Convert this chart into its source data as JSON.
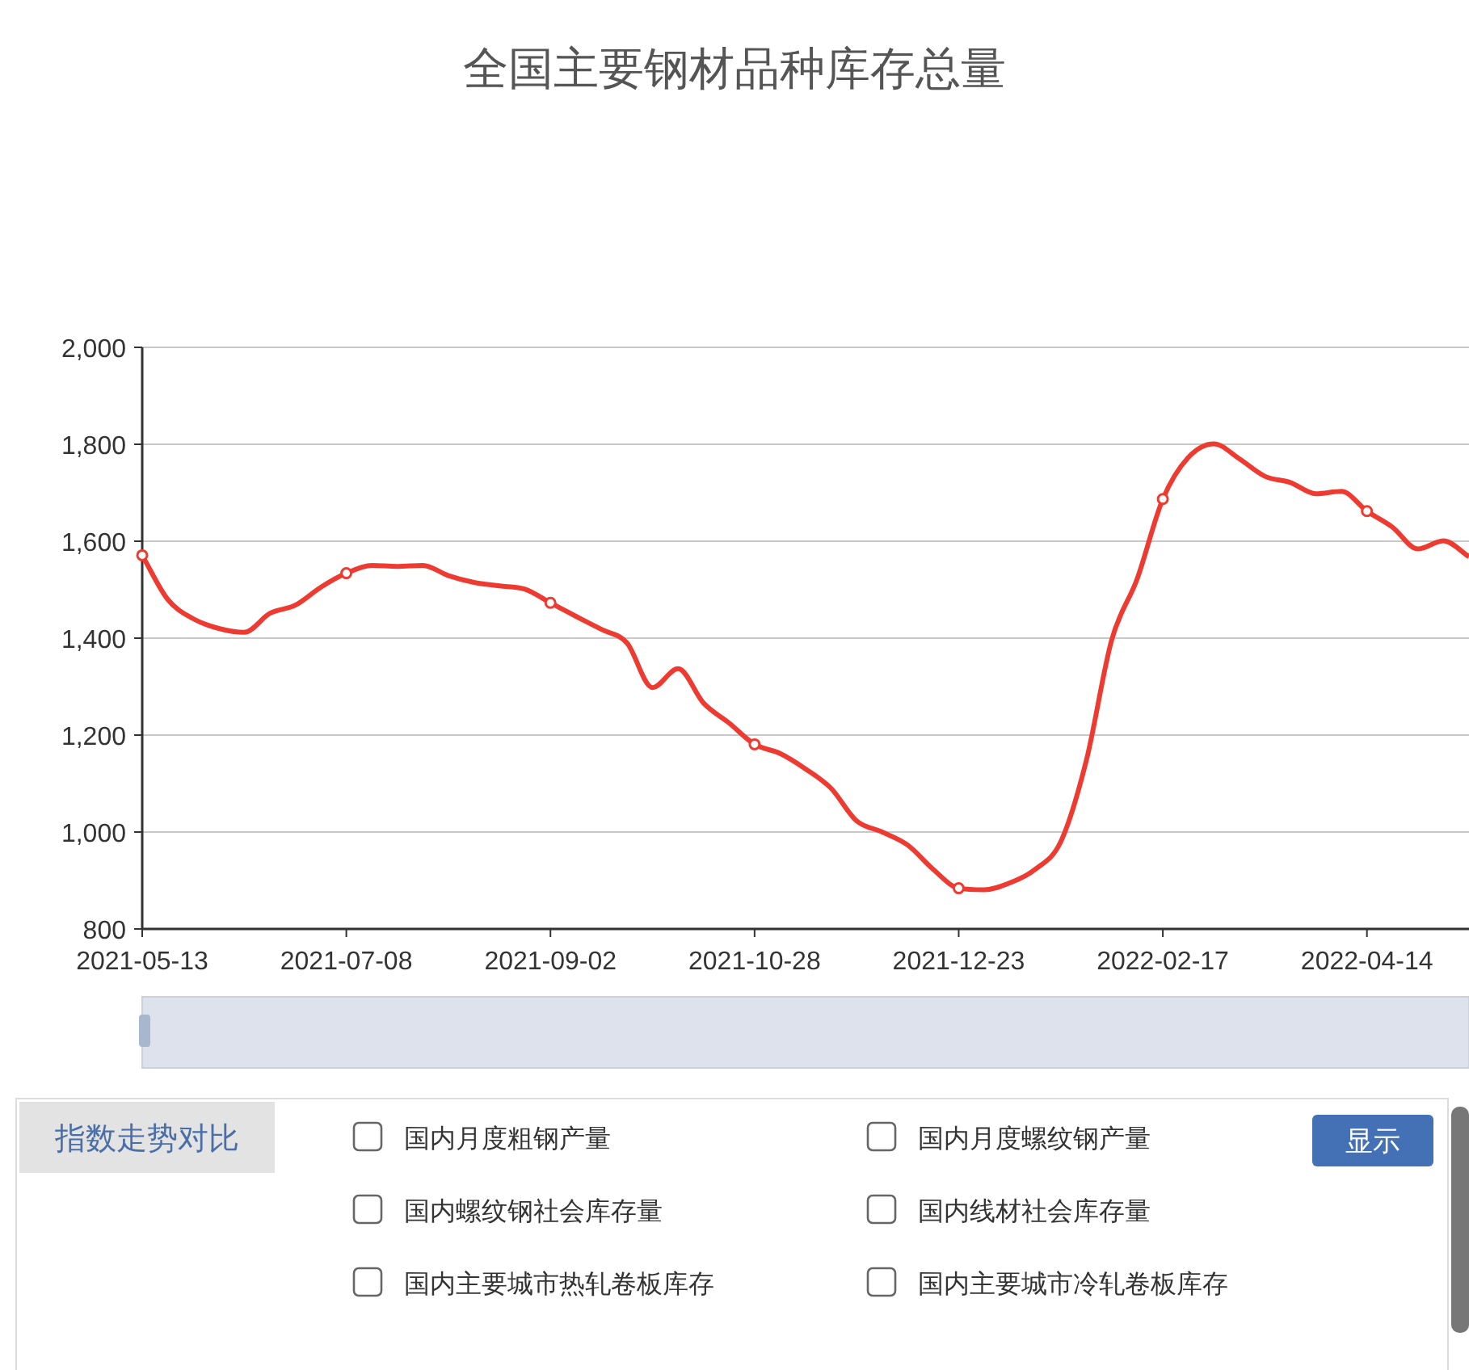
{
  "chart_data": [
    {
      "type": "line",
      "title": "全国主要钢材品种库存总量",
      "x": [
        "2021-05-13",
        "2021-05-20",
        "2021-05-27",
        "2021-06-03",
        "2021-06-10",
        "2021-06-17",
        "2021-06-24",
        "2021-07-01",
        "2021-07-08",
        "2021-07-15",
        "2021-07-22",
        "2021-07-29",
        "2021-08-05",
        "2021-08-12",
        "2021-08-19",
        "2021-08-26",
        "2021-09-02",
        "2021-09-09",
        "2021-09-16",
        "2021-09-23",
        "2021-09-30",
        "2021-10-07",
        "2021-10-14",
        "2021-10-21",
        "2021-10-28",
        "2021-11-04",
        "2021-11-11",
        "2021-11-18",
        "2021-11-25",
        "2021-12-02",
        "2021-12-09",
        "2021-12-16",
        "2021-12-23",
        "2021-12-30",
        "2022-01-06",
        "2022-01-13",
        "2022-01-20",
        "2022-01-27",
        "2022-02-03",
        "2022-02-10",
        "2022-02-17",
        "2022-02-24",
        "2022-03-03",
        "2022-03-10",
        "2022-03-17",
        "2022-03-24",
        "2022-03-31",
        "2022-04-07",
        "2022-04-14",
        "2022-04-21",
        "2022-04-28",
        "2022-05-05",
        "2022-05-12"
      ],
      "series": [
        {
          "type": "scatter",
          "marker": "circle",
          "color": "#ee3b32",
          "x": [
            "2021-05-13",
            "2021-07-08",
            "2021-09-02",
            "2021-10-28",
            "2021-12-23",
            "2022-02-17",
            "2022-04-14"
          ],
          "values": [
            1571,
            1534,
            1473,
            1181,
            884,
            1687,
            1662
          ]
        },
        {
          "color": "#ee3b32",
          "values": [
            1571,
            1480,
            1440,
            1420,
            1412,
            1451,
            1468,
            1505,
            1534,
            1550,
            1548,
            1550,
            1529,
            1515,
            1508,
            1501,
            1473,
            1445,
            1418,
            1390,
            1298,
            1337,
            1266,
            1225,
            1181,
            1162,
            1130,
            1090,
            1023,
            1000,
            973,
            923,
            884,
            881,
            895,
            923,
            980,
            1147,
            1397,
            1523,
            1687,
            1773,
            1801,
            1770,
            1734,
            1721,
            1698,
            1703,
            1662,
            1629,
            1584,
            1601,
            1568
          ]
        }
      ],
      "xlim": [
        "2021-05-13",
        "2022-05-12"
      ],
      "xticks": [
        "2021-05-13",
        "2021-07-08",
        "2021-09-02",
        "2021-10-28",
        "2021-12-23",
        "2022-02-17",
        "2022-04-14"
      ],
      "ylim": [
        800,
        2000
      ],
      "yticks": [
        {
          "value": 800,
          "label": "800"
        },
        {
          "value": 1000,
          "label": "1,000"
        },
        {
          "value": 1200,
          "label": "1,200"
        },
        {
          "value": 1400,
          "label": "1,400"
        },
        {
          "value": 1600,
          "label": "1,600"
        },
        {
          "value": 1800,
          "label": "1,800"
        },
        {
          "value": 2000,
          "label": "2,000"
        }
      ],
      "grid": "y",
      "line_style": "solid"
    },
    {
      "type": "other",
      "title": "指数走势对比",
      "annotations": [
        "国内月度粗钢产量",
        "国内月度螺纹钢产量",
        "国内螺纹钢社会库存量",
        "国内线材社会库存量",
        "国内主要城市热轧卷板库存",
        "国内主要城市冷轧卷板库存",
        "显示"
      ]
    }
  ]
}
